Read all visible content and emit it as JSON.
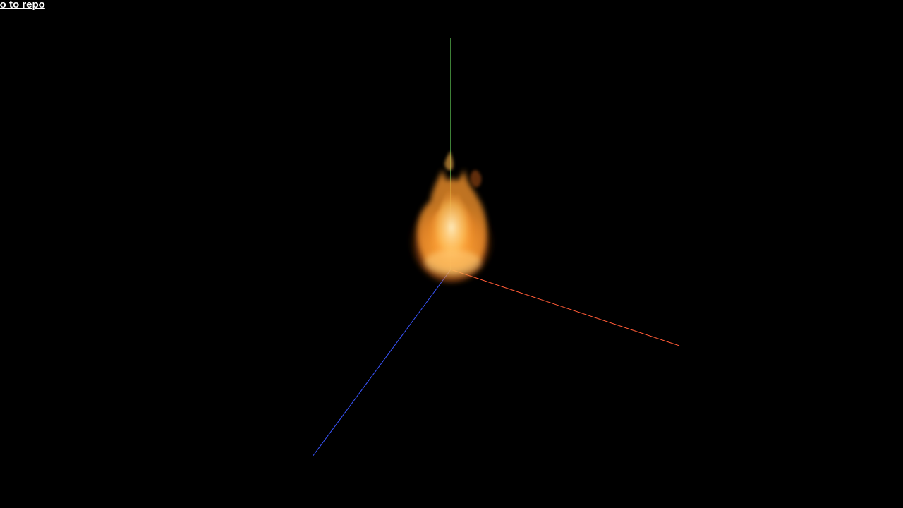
{
  "header": {
    "link_text": "Go to repo"
  },
  "scene": {
    "background_color": "#000000",
    "axes": {
      "x_color": "#ff5a36",
      "y_color": "#7dff6e",
      "z_color": "#3a55ff"
    },
    "fire": {
      "core_color": "#ffd27a",
      "mid_color": "#ff9a2e",
      "edge_color": "#b84a10"
    }
  }
}
